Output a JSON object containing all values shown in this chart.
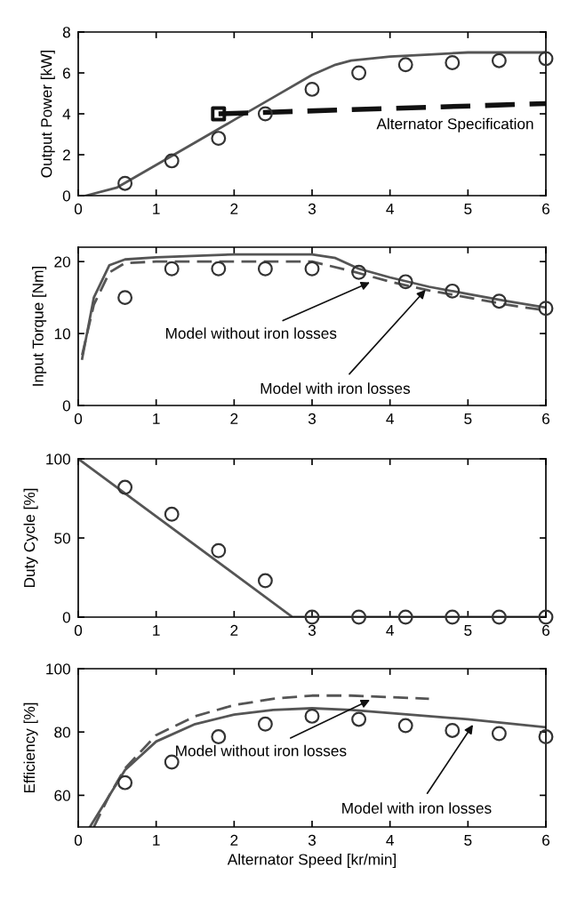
{
  "chart_data": [
    {
      "type": "line",
      "ylabel": "Output Power [kW]",
      "xlim": [
        0,
        6
      ],
      "xticks": [
        0,
        1,
        2,
        3,
        4,
        5,
        6
      ],
      "ylim": [
        0,
        8
      ],
      "yticks": [
        0,
        2,
        4,
        6,
        8
      ],
      "grid": false,
      "legend": false,
      "series": [
        {
          "type": "line",
          "color": "#555555",
          "line_style": "solid",
          "marker": "none",
          "x": [
            0.1,
            0.5,
            1,
            1.5,
            2,
            2.5,
            3,
            3.3,
            3.5,
            4,
            4.5,
            5,
            6
          ],
          "values": [
            0,
            0.4,
            1.5,
            2.6,
            3.7,
            4.8,
            5.9,
            6.4,
            6.6,
            6.8,
            6.9,
            7.0,
            7.0
          ]
        },
        {
          "type": "line",
          "color": "#111111",
          "line_style": "dashed",
          "marker": "none",
          "x": [
            1.8,
            6
          ],
          "values": [
            4.0,
            4.5
          ]
        },
        {
          "type": "scatter",
          "color": "#111111",
          "marker": "square",
          "x": [
            1.8
          ],
          "values": [
            4.0
          ]
        },
        {
          "type": "scatter",
          "color": "#333333",
          "marker": "circle",
          "x": [
            0.6,
            1.2,
            1.8,
            2.4,
            3,
            3.6,
            4.2,
            4.8,
            5.4,
            6
          ],
          "values": [
            0.6,
            1.7,
            2.8,
            4.0,
            5.2,
            6.0,
            6.4,
            6.5,
            6.6,
            6.7
          ]
        }
      ],
      "annotations": [
        {
          "text": "Alternator Specification",
          "x": 4.9,
          "y": 4.4
        }
      ]
    },
    {
      "type": "line",
      "ylabel": "Input Torque [Nm]",
      "xlim": [
        0,
        6
      ],
      "xticks": [
        0,
        1,
        2,
        3,
        4,
        5,
        6
      ],
      "ylim": [
        0,
        22
      ],
      "yticks": [
        0,
        10,
        20
      ],
      "grid": false,
      "legend": false,
      "series": [
        {
          "type": "line",
          "color": "#555555",
          "line_style": "solid",
          "marker": "none",
          "x": [
            0.05,
            0.2,
            0.4,
            0.6,
            1,
            2,
            3,
            3.3,
            3.6,
            4,
            4.5,
            5,
            5.5,
            6
          ],
          "values": [
            6.5,
            15,
            19.5,
            20.3,
            20.6,
            21,
            21,
            20.5,
            19,
            17.8,
            16.5,
            15.5,
            14.5,
            13.6
          ]
        },
        {
          "type": "line",
          "color": "#555555",
          "line_style": "dashed",
          "marker": "none",
          "x": [
            0.05,
            0.2,
            0.4,
            0.6,
            1,
            2,
            3,
            3.5,
            4,
            4.5,
            5,
            5.5,
            6
          ],
          "values": [
            7,
            14,
            18.5,
            19.8,
            20,
            20,
            20,
            18.7,
            17.2,
            16,
            15,
            14,
            13.2
          ]
        },
        {
          "type": "scatter",
          "color": "#333333",
          "marker": "circle",
          "x": [
            0.6,
            1.2,
            1.8,
            2.4,
            3,
            3.6,
            4.2,
            4.8,
            5.4,
            6
          ],
          "values": [
            15,
            19,
            19,
            19,
            19,
            18.5,
            17.2,
            15.9,
            14.5,
            13.5
          ]
        }
      ],
      "annotations": [
        {
          "text": "Model without iron losses",
          "x": 3.8,
          "y": 17.4
        },
        {
          "text": "Model with iron losses",
          "x": 4.5,
          "y": 16.6
        }
      ]
    },
    {
      "type": "line",
      "ylabel": "Duty Cycle [%]",
      "xlim": [
        0,
        6
      ],
      "xticks": [
        0,
        1,
        2,
        3,
        4,
        5,
        6
      ],
      "ylim": [
        0,
        100
      ],
      "yticks": [
        0,
        50,
        100
      ],
      "grid": false,
      "legend": false,
      "series": [
        {
          "type": "line",
          "color": "#555555",
          "line_style": "solid",
          "marker": "none",
          "x": [
            0,
            2.75,
            6
          ],
          "values": [
            100,
            0,
            0
          ]
        },
        {
          "type": "scatter",
          "color": "#333333",
          "marker": "circle",
          "x": [
            0.6,
            1.2,
            1.8,
            2.4,
            3,
            3.6,
            4.2,
            4.8,
            5.4,
            6
          ],
          "values": [
            82,
            65,
            42,
            23,
            0,
            0,
            0,
            0,
            0,
            0
          ]
        }
      ]
    },
    {
      "type": "line",
      "xlabel": "Alternator Speed [kr/min]",
      "ylabel": "Efficiency [%]",
      "xlim": [
        0,
        6
      ],
      "xticks": [
        0,
        1,
        2,
        3,
        4,
        5,
        6
      ],
      "ylim": [
        50,
        100
      ],
      "yticks": [
        60,
        80,
        100
      ],
      "grid": false,
      "legend": false,
      "series": [
        {
          "type": "line",
          "color": "#555555",
          "line_style": "solid",
          "marker": "none",
          "x": [
            0.15,
            0.4,
            0.6,
            1,
            1.5,
            2,
            2.5,
            3,
            3.5,
            4,
            5,
            6
          ],
          "values": [
            50,
            60,
            68,
            77,
            82.5,
            85.5,
            87,
            87.5,
            87,
            86,
            84,
            81.5
          ]
        },
        {
          "type": "line",
          "color": "#555555",
          "line_style": "dashed",
          "marker": "none",
          "x": [
            0.2,
            0.4,
            0.6,
            1,
            1.5,
            2,
            2.5,
            3,
            3.5,
            4,
            4.5
          ],
          "values": [
            50,
            60,
            68.5,
            79,
            85,
            88.5,
            90.5,
            91.5,
            91.5,
            91,
            90.5
          ]
        },
        {
          "type": "scatter",
          "color": "#333333",
          "marker": "circle",
          "x": [
            0.6,
            1.2,
            1.8,
            2.4,
            3,
            3.6,
            4.2,
            4.8,
            5.4,
            6
          ],
          "values": [
            64,
            70.5,
            78.5,
            82.5,
            85,
            84,
            82,
            80.5,
            79.5,
            78.5
          ]
        }
      ],
      "annotations": [
        {
          "text": "Model without iron losses",
          "x": 3.8,
          "y": 90.8
        },
        {
          "text": "Model with iron losses",
          "x": 5.1,
          "y": 83.6
        }
      ]
    }
  ]
}
